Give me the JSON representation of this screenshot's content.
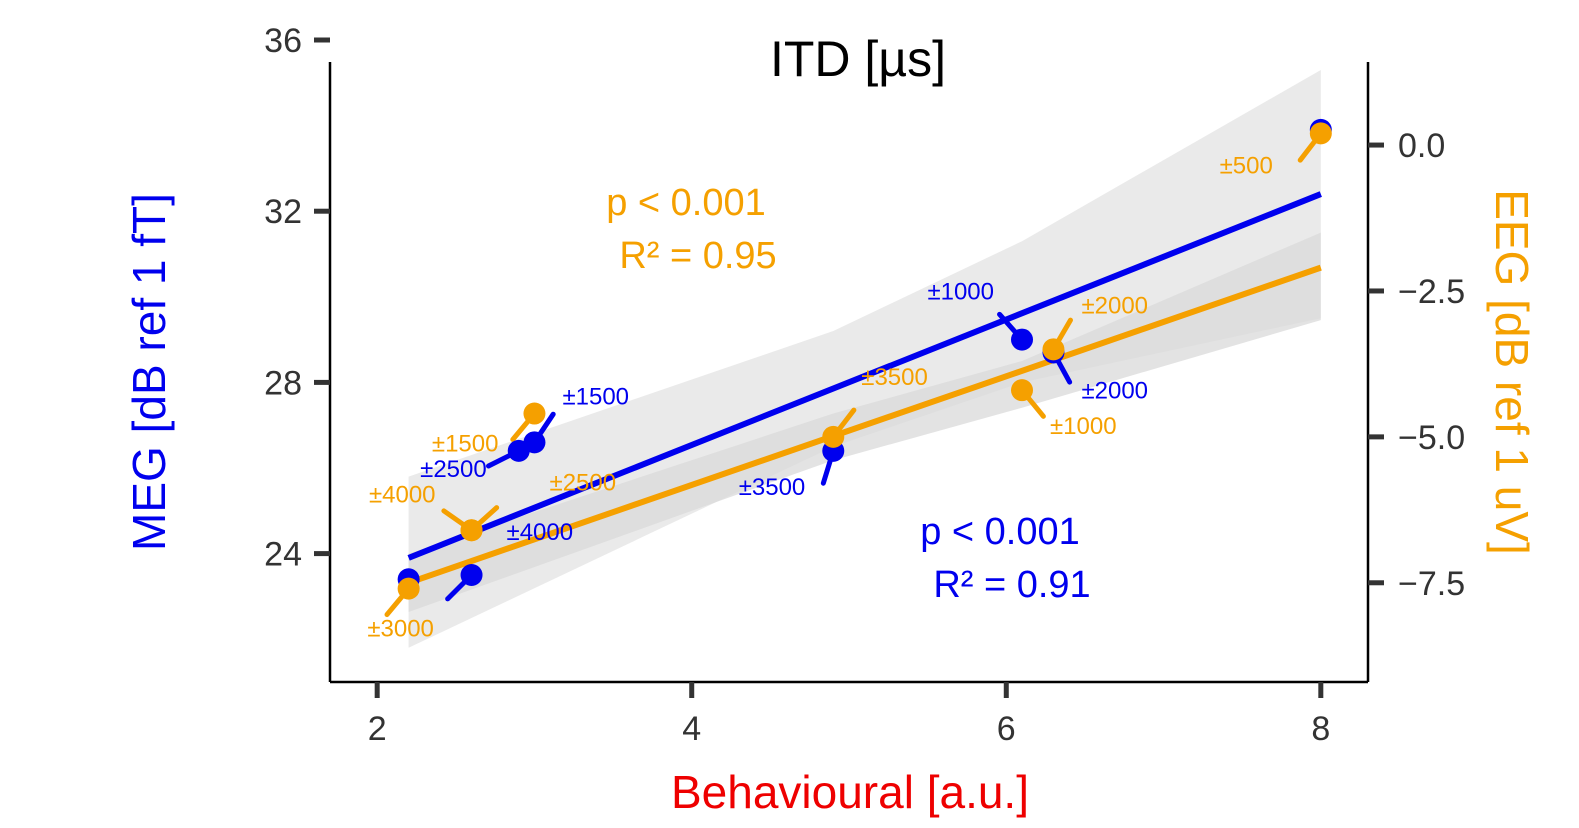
{
  "chart_data": {
    "type": "scatter",
    "title": "ITD [µs]",
    "xlabel": "Behavioural [a.u.]",
    "xlim": [
      1.7,
      8.3
    ],
    "x_ticks": [
      2,
      4,
      6,
      8
    ],
    "x_tick_labels": [
      "2",
      "4",
      "6",
      "8"
    ],
    "y_left": {
      "label": "MEG [dB ref 1 fT]",
      "lim": [
        21.0,
        36.0
      ],
      "ticks": [
        24,
        28,
        32,
        36
      ],
      "tick_labels": [
        "24",
        "28",
        "32",
        "36"
      ]
    },
    "y_right": {
      "label": "EEG [dB ref 1 uV]",
      "lim": [
        -9.2,
        1.8
      ],
      "ticks": [
        0.0,
        -2.5,
        -5.0,
        -7.5
      ],
      "tick_labels": [
        "0.0",
        "−2.5",
        "−5.0",
        "−7.5"
      ]
    },
    "grid": false,
    "colors": {
      "meg": "#0000ee",
      "eeg": "#f5a000",
      "xlabel": "#ee0000",
      "band": "#d9d9d9"
    },
    "series": [
      {
        "name": "MEG",
        "axis": "left",
        "points": [
          {
            "x": 2.2,
            "y": 23.4,
            "label": ""
          },
          {
            "x": 2.6,
            "y": 23.5,
            "label": "±4000"
          },
          {
            "x": 2.9,
            "y": 26.4,
            "label": "±2500"
          },
          {
            "x": 3.0,
            "y": 26.6,
            "label": "±1500"
          },
          {
            "x": 4.9,
            "y": 26.4,
            "label": "±3500"
          },
          {
            "x": 6.1,
            "y": 29.0,
            "label": "±1000"
          },
          {
            "x": 6.3,
            "y": 28.7,
            "label": "±2000"
          },
          {
            "x": 8.0,
            "y": 33.9,
            "label": ""
          }
        ],
        "fit": {
          "x": [
            2.2,
            8.0
          ],
          "y": [
            23.9,
            32.4
          ]
        },
        "band": {
          "x": [
            2.2,
            4.9,
            6.1,
            8.0
          ],
          "lower": [
            21.8,
            26.5,
            28.0,
            29.5
          ],
          "upper": [
            25.8,
            29.2,
            31.3,
            35.3
          ]
        },
        "stats": {
          "p": "p  < 0.001",
          "r2": "R² =  0.91"
        }
      },
      {
        "name": "EEG",
        "axis": "right",
        "points": [
          {
            "x": 2.2,
            "y": -7.6,
            "label": "±3000"
          },
          {
            "x": 2.6,
            "y": -6.6,
            "label": "±4000"
          },
          {
            "x": 2.6,
            "y": -6.6,
            "label": "±2500"
          },
          {
            "x": 3.0,
            "y": -4.6,
            "label": "±1500"
          },
          {
            "x": 4.9,
            "y": -5.0,
            "label": "±3500"
          },
          {
            "x": 6.1,
            "y": -4.2,
            "label": "±1000"
          },
          {
            "x": 6.3,
            "y": -3.5,
            "label": "±2000"
          },
          {
            "x": 8.0,
            "y": 0.2,
            "label": "±500"
          }
        ],
        "fit": {
          "x": [
            2.2,
            8.0
          ],
          "y": [
            -7.5,
            -2.1
          ]
        },
        "band": {
          "x": [
            2.2,
            4.9,
            6.1,
            8.0
          ],
          "lower": [
            -8.0,
            -5.4,
            -4.5,
            -3.0
          ],
          "upper": [
            -7.0,
            -4.6,
            -3.7,
            -1.5
          ]
        },
        "stats": {
          "p": "p  < 0.001",
          "r2": "R² =  0.95"
        }
      }
    ]
  }
}
